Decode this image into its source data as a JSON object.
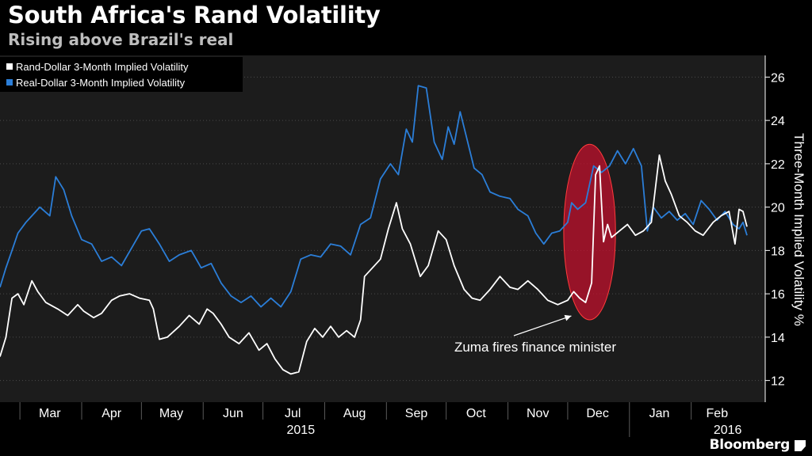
{
  "header": {
    "title": "South Africa's Rand Volatility",
    "subtitle": "Rising above Brazil's real"
  },
  "footer": {
    "brand": "Bloomberg"
  },
  "colors": {
    "background": "#000000",
    "plot_background": "#1c1c1c",
    "rand_line": "#ffffff",
    "real_line": "#2b7ed8",
    "highlight": "#c8102e",
    "grid": "#4a4a4a"
  },
  "chart_data": {
    "type": "line",
    "title": "South Africa's Rand Volatility",
    "subtitle": "Rising above Brazil's real",
    "ylabel": "Three-Month Implied Volatility %",
    "y_axis_side": "right",
    "ylim": [
      11,
      27
    ],
    "yticks": [
      12,
      14,
      16,
      18,
      20,
      22,
      24,
      26
    ],
    "grid": "horizontal dotted",
    "legend_position": "top-left",
    "x_domain": [
      "2015-02-19",
      "2016-02-29"
    ],
    "xtick_labels": [
      {
        "label": "Mar",
        "date": "2015-03-16"
      },
      {
        "label": "Apr",
        "date": "2015-04-16"
      },
      {
        "label": "May",
        "date": "2015-05-16"
      },
      {
        "label": "Jun",
        "date": "2015-06-16"
      },
      {
        "label": "Jul",
        "date": "2015-07-16"
      },
      {
        "label": "Aug",
        "date": "2015-08-16"
      },
      {
        "label": "Sep",
        "date": "2015-09-16"
      },
      {
        "label": "Oct",
        "date": "2015-10-16"
      },
      {
        "label": "Nov",
        "date": "2015-11-16"
      },
      {
        "label": "Dec",
        "date": "2015-12-16"
      },
      {
        "label": "Jan",
        "date": "2016-01-16"
      },
      {
        "label": "Feb",
        "date": "2016-02-14"
      }
    ],
    "month_boundaries": [
      "2015-03-01",
      "2015-04-01",
      "2015-05-01",
      "2015-06-01",
      "2015-07-01",
      "2015-08-01",
      "2015-09-01",
      "2015-10-01",
      "2015-11-01",
      "2015-12-01",
      "2016-01-01",
      "2016-02-01"
    ],
    "year_labels": [
      {
        "label": "2015",
        "date": "2015-07-20"
      },
      {
        "label": "2016",
        "date": "2016-02-01"
      }
    ],
    "year_boundary": "2016-01-01",
    "series": [
      {
        "name": "Rand-Dollar 3-Month Implied Volatility",
        "color": "#ffffff",
        "points": [
          [
            "2015-02-19",
            13.1
          ],
          [
            "2015-02-22",
            14.0
          ],
          [
            "2015-02-25",
            15.8
          ],
          [
            "2015-02-28",
            16.0
          ],
          [
            "2015-03-03",
            15.5
          ],
          [
            "2015-03-07",
            16.6
          ],
          [
            "2015-03-10",
            16.1
          ],
          [
            "2015-03-14",
            15.6
          ],
          [
            "2015-03-20",
            15.3
          ],
          [
            "2015-03-25",
            15.0
          ],
          [
            "2015-03-30",
            15.5
          ],
          [
            "2015-04-02",
            15.2
          ],
          [
            "2015-04-07",
            14.9
          ],
          [
            "2015-04-11",
            15.1
          ],
          [
            "2015-04-16",
            15.7
          ],
          [
            "2015-04-20",
            15.9
          ],
          [
            "2015-04-25",
            16.0
          ],
          [
            "2015-04-30",
            15.8
          ],
          [
            "2015-05-05",
            15.7
          ],
          [
            "2015-05-07",
            15.3
          ],
          [
            "2015-05-10",
            13.9
          ],
          [
            "2015-05-14",
            14.0
          ],
          [
            "2015-05-20",
            14.5
          ],
          [
            "2015-05-25",
            15.0
          ],
          [
            "2015-05-30",
            14.6
          ],
          [
            "2015-06-03",
            15.3
          ],
          [
            "2015-06-06",
            15.1
          ],
          [
            "2015-06-10",
            14.6
          ],
          [
            "2015-06-14",
            14.0
          ],
          [
            "2015-06-19",
            13.7
          ],
          [
            "2015-06-24",
            14.2
          ],
          [
            "2015-06-29",
            13.4
          ],
          [
            "2015-07-03",
            13.7
          ],
          [
            "2015-07-07",
            13.0
          ],
          [
            "2015-07-11",
            12.5
          ],
          [
            "2015-07-15",
            12.3
          ],
          [
            "2015-07-19",
            12.4
          ],
          [
            "2015-07-23",
            13.8
          ],
          [
            "2015-07-27",
            14.4
          ],
          [
            "2015-07-31",
            14.0
          ],
          [
            "2015-08-04",
            14.5
          ],
          [
            "2015-08-08",
            14.0
          ],
          [
            "2015-08-12",
            14.3
          ],
          [
            "2015-08-16",
            14.0
          ],
          [
            "2015-08-19",
            14.8
          ],
          [
            "2015-08-21",
            16.8
          ],
          [
            "2015-08-25",
            17.2
          ],
          [
            "2015-08-29",
            17.6
          ],
          [
            "2015-09-02",
            19.0
          ],
          [
            "2015-09-06",
            20.2
          ],
          [
            "2015-09-09",
            19.0
          ],
          [
            "2015-09-13",
            18.3
          ],
          [
            "2015-09-18",
            16.8
          ],
          [
            "2015-09-22",
            17.3
          ],
          [
            "2015-09-27",
            18.9
          ],
          [
            "2015-10-01",
            18.5
          ],
          [
            "2015-10-05",
            17.3
          ],
          [
            "2015-10-10",
            16.2
          ],
          [
            "2015-10-14",
            15.8
          ],
          [
            "2015-10-18",
            15.7
          ],
          [
            "2015-10-23",
            16.2
          ],
          [
            "2015-10-28",
            16.8
          ],
          [
            "2015-11-02",
            16.3
          ],
          [
            "2015-11-06",
            16.2
          ],
          [
            "2015-11-11",
            16.6
          ],
          [
            "2015-11-16",
            16.2
          ],
          [
            "2015-11-21",
            15.7
          ],
          [
            "2015-11-26",
            15.5
          ],
          [
            "2015-12-01",
            15.7
          ],
          [
            "2015-12-04",
            16.1
          ],
          [
            "2015-12-07",
            15.8
          ],
          [
            "2015-12-10",
            15.6
          ],
          [
            "2015-12-13",
            16.5
          ],
          [
            "2015-12-15",
            21.5
          ],
          [
            "2015-12-17",
            21.9
          ],
          [
            "2015-12-19",
            18.4
          ],
          [
            "2015-12-21",
            19.2
          ],
          [
            "2015-12-23",
            18.6
          ],
          [
            "2015-12-27",
            18.9
          ],
          [
            "2015-12-31",
            19.2
          ],
          [
            "2016-01-04",
            18.7
          ],
          [
            "2016-01-08",
            18.9
          ],
          [
            "2016-01-12",
            19.3
          ],
          [
            "2016-01-16",
            22.4
          ],
          [
            "2016-01-19",
            21.2
          ],
          [
            "2016-01-22",
            20.6
          ],
          [
            "2016-01-26",
            19.6
          ],
          [
            "2016-01-30",
            19.3
          ],
          [
            "2016-02-03",
            18.9
          ],
          [
            "2016-02-07",
            18.7
          ],
          [
            "2016-02-12",
            19.3
          ],
          [
            "2016-02-16",
            19.6
          ],
          [
            "2016-02-20",
            19.8
          ],
          [
            "2016-02-23",
            18.3
          ],
          [
            "2016-02-25",
            19.9
          ],
          [
            "2016-02-27",
            19.8
          ],
          [
            "2016-02-29",
            19.1
          ]
        ]
      },
      {
        "name": "Real-Dollar 3-Month Implied Volatility",
        "color": "#2b7ed8",
        "points": [
          [
            "2015-02-19",
            16.3
          ],
          [
            "2015-02-22",
            17.2
          ],
          [
            "2015-02-25",
            18.0
          ],
          [
            "2015-02-28",
            18.8
          ],
          [
            "2015-03-04",
            19.3
          ],
          [
            "2015-03-07",
            19.6
          ],
          [
            "2015-03-11",
            20.0
          ],
          [
            "2015-03-16",
            19.6
          ],
          [
            "2015-03-19",
            21.4
          ],
          [
            "2015-03-23",
            20.8
          ],
          [
            "2015-03-27",
            19.6
          ],
          [
            "2015-04-01",
            18.5
          ],
          [
            "2015-04-06",
            18.3
          ],
          [
            "2015-04-11",
            17.5
          ],
          [
            "2015-04-16",
            17.7
          ],
          [
            "2015-04-21",
            17.3
          ],
          [
            "2015-04-26",
            18.1
          ],
          [
            "2015-05-01",
            18.9
          ],
          [
            "2015-05-05",
            19.0
          ],
          [
            "2015-05-10",
            18.3
          ],
          [
            "2015-05-15",
            17.5
          ],
          [
            "2015-05-20",
            17.8
          ],
          [
            "2015-05-26",
            18.0
          ],
          [
            "2015-05-31",
            17.2
          ],
          [
            "2015-06-05",
            17.4
          ],
          [
            "2015-06-10",
            16.5
          ],
          [
            "2015-06-15",
            15.9
          ],
          [
            "2015-06-20",
            15.6
          ],
          [
            "2015-06-25",
            15.9
          ],
          [
            "2015-06-30",
            15.4
          ],
          [
            "2015-07-05",
            15.8
          ],
          [
            "2015-07-10",
            15.4
          ],
          [
            "2015-07-15",
            16.1
          ],
          [
            "2015-07-20",
            17.6
          ],
          [
            "2015-07-25",
            17.8
          ],
          [
            "2015-07-30",
            17.7
          ],
          [
            "2015-08-04",
            18.3
          ],
          [
            "2015-08-09",
            18.2
          ],
          [
            "2015-08-14",
            17.8
          ],
          [
            "2015-08-19",
            19.2
          ],
          [
            "2015-08-24",
            19.5
          ],
          [
            "2015-08-29",
            21.3
          ],
          [
            "2015-09-03",
            22.0
          ],
          [
            "2015-09-07",
            21.5
          ],
          [
            "2015-09-11",
            23.6
          ],
          [
            "2015-09-14",
            23.0
          ],
          [
            "2015-09-17",
            25.6
          ],
          [
            "2015-09-21",
            25.5
          ],
          [
            "2015-09-25",
            23.0
          ],
          [
            "2015-09-29",
            22.2
          ],
          [
            "2015-10-02",
            23.7
          ],
          [
            "2015-10-05",
            22.9
          ],
          [
            "2015-10-08",
            24.4
          ],
          [
            "2015-10-11",
            23.3
          ],
          [
            "2015-10-15",
            21.8
          ],
          [
            "2015-10-19",
            21.5
          ],
          [
            "2015-10-23",
            20.7
          ],
          [
            "2015-10-28",
            20.5
          ],
          [
            "2015-11-02",
            20.4
          ],
          [
            "2015-11-06",
            19.9
          ],
          [
            "2015-11-11",
            19.6
          ],
          [
            "2015-11-15",
            18.8
          ],
          [
            "2015-11-19",
            18.3
          ],
          [
            "2015-11-23",
            18.8
          ],
          [
            "2015-11-27",
            18.9
          ],
          [
            "2015-12-01",
            19.3
          ],
          [
            "2015-12-03",
            20.2
          ],
          [
            "2015-12-06",
            19.9
          ],
          [
            "2015-12-10",
            20.2
          ],
          [
            "2015-12-14",
            21.9
          ],
          [
            "2015-12-18",
            21.6
          ],
          [
            "2015-12-22",
            21.9
          ],
          [
            "2015-12-26",
            22.6
          ],
          [
            "2015-12-30",
            22.0
          ],
          [
            "2016-01-03",
            22.7
          ],
          [
            "2016-01-07",
            21.9
          ],
          [
            "2016-01-10",
            18.9
          ],
          [
            "2016-01-13",
            20.0
          ],
          [
            "2016-01-17",
            19.5
          ],
          [
            "2016-01-21",
            19.8
          ],
          [
            "2016-01-25",
            19.4
          ],
          [
            "2016-01-29",
            19.7
          ],
          [
            "2016-02-02",
            19.2
          ],
          [
            "2016-02-06",
            20.3
          ],
          [
            "2016-02-10",
            19.9
          ],
          [
            "2016-02-14",
            19.4
          ],
          [
            "2016-02-18",
            19.8
          ],
          [
            "2016-02-22",
            19.2
          ],
          [
            "2016-02-25",
            19.0
          ],
          [
            "2016-02-27",
            19.3
          ],
          [
            "2016-02-29",
            18.7
          ]
        ]
      }
    ],
    "annotation": {
      "text": "Zuma fires finance minister",
      "highlight_dates": [
        "2015-11-29",
        "2015-12-25"
      ],
      "highlight_values": [
        14.8,
        22.9
      ],
      "arrow_target": {
        "date": "2015-12-06",
        "value": 15.2
      }
    }
  }
}
